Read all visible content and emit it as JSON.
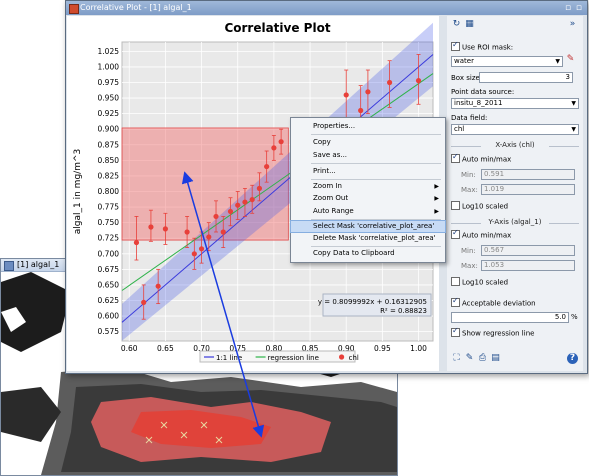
{
  "background_window": {
    "title": "[1] algal_1"
  },
  "main_window": {
    "title": "Correlative Plot - [1] algal_1",
    "controls": "▫ ▫"
  },
  "chart_data": {
    "type": "scatter",
    "title": "Correlative Plot",
    "xlabel": "chl",
    "ylabel": "algal_1 in mg/m^3",
    "xlim": [
      0.59,
      1.02
    ],
    "ylim": [
      0.56,
      1.04
    ],
    "x_ticks": [
      "0.60",
      "0.65",
      "0.70",
      "0.75",
      "0.80",
      "0.85",
      "0.90",
      "0.95",
      "1.00"
    ],
    "y_ticks": [
      "0.575",
      "0.600",
      "0.625",
      "0.650",
      "0.675",
      "0.700",
      "0.725",
      "0.750",
      "0.775",
      "0.800",
      "0.825",
      "0.850",
      "0.875",
      "0.900",
      "0.925",
      "0.950",
      "0.975",
      "1.000",
      "1.025"
    ],
    "points": [
      {
        "x": 0.61,
        "y": 0.718,
        "lo": 0.69,
        "hi": 0.76
      },
      {
        "x": 0.62,
        "y": 0.622,
        "lo": 0.595,
        "hi": 0.65
      },
      {
        "x": 0.63,
        "y": 0.743,
        "lo": 0.72,
        "hi": 0.77
      },
      {
        "x": 0.64,
        "y": 0.648,
        "lo": 0.62,
        "hi": 0.675
      },
      {
        "x": 0.65,
        "y": 0.74,
        "lo": 0.715,
        "hi": 0.765
      },
      {
        "x": 0.68,
        "y": 0.735,
        "lo": 0.71,
        "hi": 0.76
      },
      {
        "x": 0.69,
        "y": 0.7,
        "lo": 0.675,
        "hi": 0.725
      },
      {
        "x": 0.7,
        "y": 0.708,
        "lo": 0.685,
        "hi": 0.735
      },
      {
        "x": 0.71,
        "y": 0.727,
        "lo": 0.705,
        "hi": 0.75
      },
      {
        "x": 0.72,
        "y": 0.76,
        "lo": 0.735,
        "hi": 0.785
      },
      {
        "x": 0.73,
        "y": 0.735,
        "lo": 0.71,
        "hi": 0.76
      },
      {
        "x": 0.74,
        "y": 0.768,
        "lo": 0.745,
        "hi": 0.79
      },
      {
        "x": 0.75,
        "y": 0.778,
        "lo": 0.755,
        "hi": 0.8
      },
      {
        "x": 0.76,
        "y": 0.783,
        "lo": 0.76,
        "hi": 0.805
      },
      {
        "x": 0.77,
        "y": 0.787,
        "lo": 0.765,
        "hi": 0.81
      },
      {
        "x": 0.78,
        "y": 0.805,
        "lo": 0.785,
        "hi": 0.83
      },
      {
        "x": 0.79,
        "y": 0.84,
        "lo": 0.815,
        "hi": 0.865
      },
      {
        "x": 0.8,
        "y": 0.87,
        "lo": 0.85,
        "hi": 0.89
      },
      {
        "x": 0.81,
        "y": 0.88,
        "lo": 0.86,
        "hi": 0.9
      },
      {
        "x": 0.9,
        "y": 0.955,
        "lo": 0.915,
        "hi": 0.995
      },
      {
        "x": 0.92,
        "y": 0.93,
        "lo": 0.89,
        "hi": 0.97
      },
      {
        "x": 0.93,
        "y": 0.96,
        "lo": 0.925,
        "hi": 0.995
      },
      {
        "x": 0.96,
        "y": 0.975,
        "lo": 0.935,
        "hi": 1.01
      },
      {
        "x": 1.0,
        "y": 0.978,
        "lo": 0.94,
        "hi": 1.02
      }
    ],
    "legend": [
      {
        "name": "1:1 line",
        "color": "#3a3adc",
        "kind": "line"
      },
      {
        "name": "regression line",
        "color": "#2fb34a",
        "kind": "line"
      },
      {
        "name": "chl",
        "color": "#e8403a",
        "kind": "dot"
      }
    ],
    "equation": "y = 0.8099992x + 0.16312905",
    "r2": "R² = 0.88823",
    "mask_rect": {
      "x0": 0.59,
      "x1": 0.82,
      "y0": 0.722,
      "y1": 0.902
    }
  },
  "panel": {
    "use_roi_mask_label": "Use ROI mask:",
    "roi_mask_value": "water",
    "box_size_label": "Box size:",
    "box_size_value": "3",
    "point_source_label": "Point data source:",
    "point_source_value": "insitu_8_2011",
    "data_field_label": "Data field:",
    "data_field_value": "chl",
    "x_axis_title": "X-Axis (chl)",
    "x_auto_label": "Auto min/max",
    "x_min_label": "Min:",
    "x_min_value": "0.591",
    "x_max_label": "Max:",
    "x_max_value": "1.019",
    "x_log_label": "Log10 scaled",
    "y_axis_title": "Y-Axis (algal_1)",
    "y_auto_label": "Auto min/max",
    "y_min_label": "Min:",
    "y_min_value": "0.567",
    "y_max_label": "Max:",
    "y_max_value": "1.053",
    "y_log_label": "Log10 scaled",
    "acc_dev_label": "Acceptable deviation",
    "acc_dev_value": "5.0",
    "acc_dev_unit": "%",
    "show_reg_label": "Show regression line"
  },
  "context_menu": {
    "items": [
      "Properties...",
      "Copy",
      "Save as...",
      "Print...",
      "Zoom In",
      "Zoom Out",
      "Auto Range",
      "Select Mask 'correlative_plot_area'",
      "Delete Mask 'correlative_plot_area'",
      "Copy Data to Clipboard"
    ]
  }
}
